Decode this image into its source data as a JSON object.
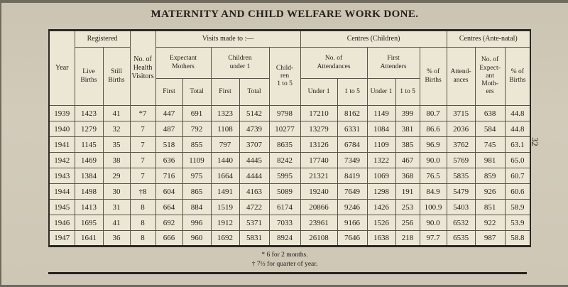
{
  "page": {
    "title": "MATERNITY AND CHILD WELFARE WORK DONE.",
    "side_page_number": "32",
    "footnotes": [
      "* 6 for 2 months.",
      "† 7½ for quarter of year."
    ]
  },
  "table": {
    "group_headers": {
      "year": "Year",
      "registered": "Registered",
      "health_visitors": "No. of\nHealth\nVisitors",
      "visits": "Visits made to :—",
      "centres_children": "Centres (Children)",
      "centres_antenatal": "Centres (Ante-natal)"
    },
    "sub_headers": {
      "live_births": "Live\nBirths",
      "still_births": "Still\nBirths",
      "expectant_mothers": "Expectant\nMothers",
      "children_under_1": "Children\nunder 1",
      "children_1_to_5": "Child-\nren\n1 to 5",
      "attendances": "No. of\nAttendances",
      "first_attenders": "First\nAttenders",
      "pct_births_children": "% of\nBirths",
      "attendances_antenatal": "Attend-\nances",
      "expectant_mothers_no": "No. of\nExpect-\nant\nMoth-\ners",
      "pct_births_antenatal": "% of\nBirths"
    },
    "leaf_headers": {
      "first_em": "First",
      "total_em": "Total",
      "first_cu1": "First",
      "total_cu1": "Total",
      "under_1_att": "Under 1",
      "one_to_5_att": "1 to 5",
      "under_1_fa": "Under 1",
      "one_to_5_fa": "1 to 5"
    },
    "rows": [
      [
        "1939",
        "1423",
        "41",
        "*7",
        "447",
        "691",
        "1323",
        "5142",
        "9798",
        "17210",
        "8162",
        "1149",
        "399",
        "80.7",
        "3715",
        "638",
        "44.8"
      ],
      [
        "1940",
        "1279",
        "32",
        "7",
        "487",
        "792",
        "1108",
        "4739",
        "10277",
        "13279",
        "6331",
        "1084",
        "381",
        "86.6",
        "2036",
        "584",
        "44.8"
      ],
      [
        "1941",
        "1145",
        "35",
        "7",
        "518",
        "855",
        "797",
        "3707",
        "8635",
        "13126",
        "6784",
        "1109",
        "385",
        "96.9",
        "3762",
        "745",
        "63.1"
      ],
      [
        "1942",
        "1469",
        "38",
        "7",
        "636",
        "1109",
        "1440",
        "4445",
        "8242",
        "17740",
        "7349",
        "1322",
        "467",
        "90.0",
        "5769",
        "981",
        "65.0"
      ],
      [
        "1943",
        "1384",
        "29",
        "7",
        "716",
        "975",
        "1664",
        "4444",
        "5995",
        "21321",
        "8419",
        "1069",
        "368",
        "76.5",
        "5835",
        "859",
        "60.7"
      ],
      [
        "1944",
        "1498",
        "30",
        "†8",
        "604",
        "865",
        "1491",
        "4163",
        "5089",
        "19240",
        "7649",
        "1298",
        "191",
        "84.9",
        "5479",
        "926",
        "60.6"
      ],
      [
        "1945",
        "1413",
        "31",
        "8",
        "664",
        "884",
        "1519",
        "4722",
        "6174",
        "20866",
        "9246",
        "1426",
        "253",
        "100.9",
        "5403",
        "851",
        "58.9"
      ],
      [
        "1946",
        "1695",
        "41",
        "8",
        "692",
        "996",
        "1912",
        "5371",
        "7033",
        "23961",
        "9166",
        "1526",
        "256",
        "90.0",
        "6532",
        "922",
        "53.9"
      ],
      [
        "1947",
        "1641",
        "36",
        "8",
        "666",
        "960",
        "1692",
        "5831",
        "8924",
        "26108",
        "7646",
        "1638",
        "218",
        "97.7",
        "6535",
        "987",
        "58.8"
      ]
    ]
  }
}
